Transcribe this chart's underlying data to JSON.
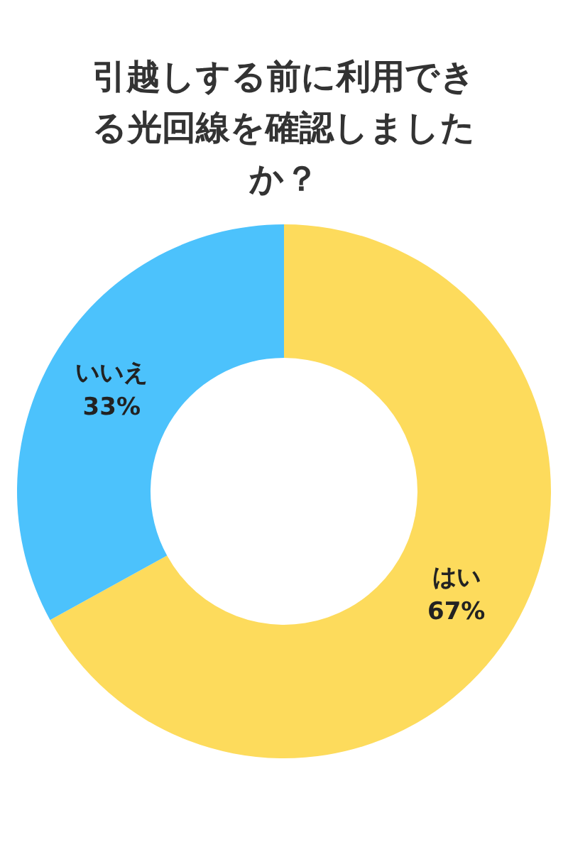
{
  "chart_data": {
    "type": "donut",
    "title": "引越しする前に利用できる光回線を確認しましたか？",
    "categories": [
      "はい",
      "いいえ"
    ],
    "values": [
      67,
      33
    ],
    "value_labels": [
      "67%",
      "33%"
    ],
    "colors": [
      "#fddb5c",
      "#4cc2fc"
    ]
  }
}
